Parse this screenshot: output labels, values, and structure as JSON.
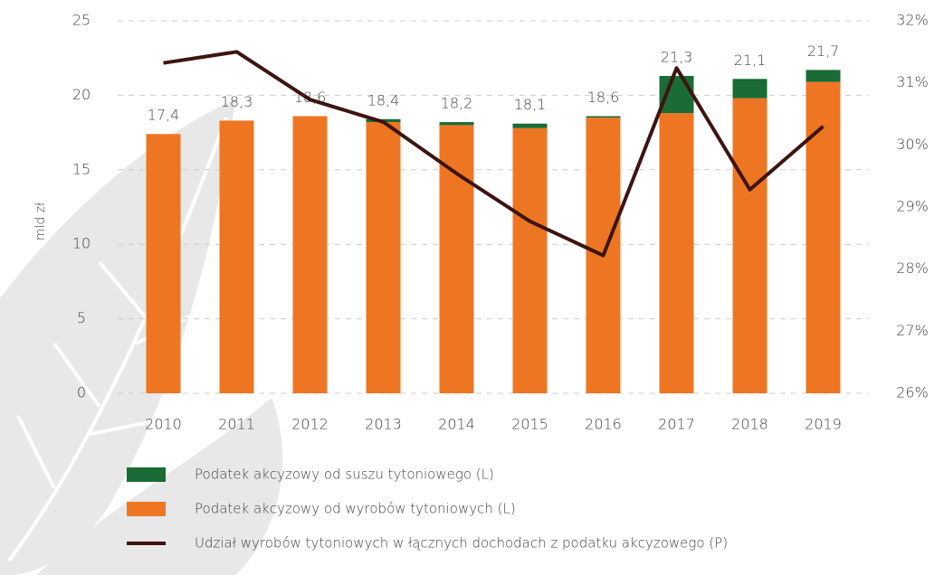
{
  "chart_data": {
    "type": "bar",
    "y_label": "mld zł",
    "categories": [
      "2010",
      "2011",
      "2012",
      "2013",
      "2014",
      "2015",
      "2016",
      "2017",
      "2018",
      "2019"
    ],
    "stacked": true,
    "series": [
      {
        "name": "Podatek akcyzowy od wyrobów tytoniowych (L)",
        "color": "#ee7623",
        "type": "bar",
        "values": [
          17.4,
          18.3,
          18.6,
          18.2,
          18.0,
          17.8,
          18.5,
          18.8,
          19.8,
          20.9
        ]
      },
      {
        "name": "Podatek akcyzowy od suszu tytoniowego (L)",
        "color": "#1a6b35",
        "type": "bar",
        "values": [
          0,
          0,
          0,
          0.2,
          0.2,
          0.3,
          0.1,
          2.5,
          1.3,
          0.8
        ]
      },
      {
        "name": "Udział wyrobów tytoniowych w łącznych dochodach z podatku akcyzowego (P)",
        "color": "#3d1410",
        "type": "line",
        "axis": "y2",
        "values": [
          31.32,
          31.5,
          30.73,
          30.37,
          29.54,
          28.77,
          28.22,
          31.24,
          29.28,
          30.3
        ]
      }
    ],
    "totals": {
      "values": [
        17.4,
        18.3,
        18.6,
        18.4,
        18.2,
        18.1,
        18.6,
        21.3,
        21.1,
        21.7
      ],
      "value_labels": [
        "17,4",
        "18,3",
        "18,6",
        "18,4",
        "18,2",
        "18,1",
        "18,6",
        "21,3",
        "21,1",
        "21,7"
      ]
    },
    "legend_order": [
      1,
      0,
      2
    ],
    "ylim": [
      0,
      25
    ],
    "yticks": [
      0,
      5,
      10,
      15,
      20,
      25
    ],
    "y2lim": [
      26,
      32
    ],
    "y2ticks": [
      {
        "value": 26,
        "label": "26%"
      },
      {
        "value": 27,
        "label": "27%"
      },
      {
        "value": 28,
        "label": "28%"
      },
      {
        "value": 29,
        "label": "29%"
      },
      {
        "value": 30,
        "label": "30%"
      },
      {
        "value": 31,
        "label": "31%"
      },
      {
        "value": 32,
        "label": "32%"
      }
    ],
    "grid": true
  }
}
